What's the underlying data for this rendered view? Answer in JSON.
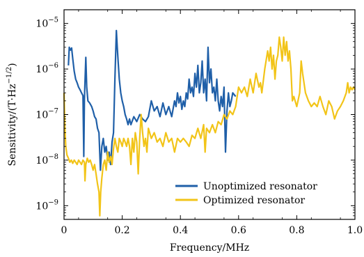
{
  "chart_data": {
    "type": "line",
    "xlabel": "Frequency/MHz",
    "ylabel": "Sensitivity/(T·Hz",
    "ylabel_exponent": "−1/2",
    "ylabel_suffix": ")",
    "xlim": [
      0,
      1.0
    ],
    "ylim": [
      5e-10,
      2e-05
    ],
    "yscale": "log",
    "grid": false,
    "legend_placement": "lower-right",
    "x_ticks": [
      0,
      0.2,
      0.4,
      0.6,
      0.8,
      1.0
    ],
    "x_tick_labels": [
      "0",
      "0.2",
      "0.4",
      "0.6",
      "0.8",
      "1.0"
    ],
    "y_ticks": [
      1e-09,
      1e-08,
      1e-07,
      1e-06,
      1e-05
    ],
    "y_tick_labels": [
      {
        "base": "10",
        "exp": "−9"
      },
      {
        "base": "10",
        "exp": "−8"
      },
      {
        "base": "10",
        "exp": "−7"
      },
      {
        "base": "10",
        "exp": "−6"
      },
      {
        "base": "10",
        "exp": "−5"
      }
    ],
    "series": [
      {
        "name": "Unoptimized resonator",
        "color": "#1f5fa8",
        "points": [
          [
            0.015,
            1.2e-06
          ],
          [
            0.018,
            3e-06
          ],
          [
            0.022,
            2.6e-06
          ],
          [
            0.026,
            2.9e-06
          ],
          [
            0.03,
            1.7e-06
          ],
          [
            0.035,
            9e-07
          ],
          [
            0.04,
            6e-07
          ],
          [
            0.045,
            5e-07
          ],
          [
            0.05,
            4e-07
          ],
          [
            0.055,
            3.5e-07
          ],
          [
            0.06,
            3e-07
          ],
          [
            0.065,
            2.6e-07
          ],
          [
            0.068,
            1.2e-08
          ],
          [
            0.07,
            2.2e-07
          ],
          [
            0.075,
            1.8e-06
          ],
          [
            0.078,
            4e-07
          ],
          [
            0.082,
            2e-07
          ],
          [
            0.088,
            1.8e-07
          ],
          [
            0.095,
            1.5e-07
          ],
          [
            0.1,
            1.2e-07
          ],
          [
            0.105,
            9e-08
          ],
          [
            0.11,
            8e-08
          ],
          [
            0.115,
            5e-08
          ],
          [
            0.12,
            4e-08
          ],
          [
            0.125,
            6e-09
          ],
          [
            0.13,
            2e-08
          ],
          [
            0.135,
            3e-08
          ],
          [
            0.14,
            1.5e-08
          ],
          [
            0.145,
            2e-08
          ],
          [
            0.15,
            1e-08
          ],
          [
            0.155,
            1.5e-08
          ],
          [
            0.16,
            8e-09
          ],
          [
            0.165,
            2.5e-08
          ],
          [
            0.17,
            4e-08
          ],
          [
            0.175,
            6e-07
          ],
          [
            0.18,
            7e-06
          ],
          [
            0.183,
            3e-06
          ],
          [
            0.186,
            1.5e-06
          ],
          [
            0.19,
            6e-07
          ],
          [
            0.195,
            3e-07
          ],
          [
            0.2,
            2e-07
          ],
          [
            0.205,
            1.5e-07
          ],
          [
            0.21,
            1e-07
          ],
          [
            0.215,
            8e-08
          ],
          [
            0.22,
            6e-08
          ],
          [
            0.225,
            8e-08
          ],
          [
            0.23,
            6e-08
          ],
          [
            0.24,
            9e-08
          ],
          [
            0.25,
            7e-08
          ],
          [
            0.26,
            1e-07
          ],
          [
            0.27,
            8e-08
          ],
          [
            0.28,
            7e-08
          ],
          [
            0.29,
            9e-08
          ],
          [
            0.3,
            2e-07
          ],
          [
            0.31,
            1.2e-07
          ],
          [
            0.32,
            1.5e-07
          ],
          [
            0.33,
            9e-08
          ],
          [
            0.34,
            1.8e-07
          ],
          [
            0.35,
            1e-07
          ],
          [
            0.36,
            1.5e-07
          ],
          [
            0.37,
            9e-08
          ],
          [
            0.38,
            2e-07
          ],
          [
            0.385,
            1.5e-07
          ],
          [
            0.39,
            3e-07
          ],
          [
            0.395,
            1.8e-07
          ],
          [
            0.4,
            2.5e-07
          ],
          [
            0.405,
            1.3e-07
          ],
          [
            0.41,
            2e-07
          ],
          [
            0.415,
            1.5e-07
          ],
          [
            0.42,
            3e-07
          ],
          [
            0.425,
            2.2e-07
          ],
          [
            0.43,
            6e-07
          ],
          [
            0.435,
            3e-07
          ],
          [
            0.44,
            4e-07
          ],
          [
            0.445,
            2.5e-07
          ],
          [
            0.45,
            8e-07
          ],
          [
            0.455,
            4e-07
          ],
          [
            0.46,
            1.2e-06
          ],
          [
            0.465,
            3e-07
          ],
          [
            0.47,
            5e-07
          ],
          [
            0.475,
            1.5e-06
          ],
          [
            0.48,
            3e-07
          ],
          [
            0.485,
            6e-07
          ],
          [
            0.49,
            2e-07
          ],
          [
            0.495,
            3e-06
          ],
          [
            0.5,
            5e-07
          ],
          [
            0.505,
            1e-06
          ],
          [
            0.51,
            3e-07
          ],
          [
            0.515,
            4e-07
          ],
          [
            0.52,
            2e-07
          ],
          [
            0.525,
            6e-07
          ],
          [
            0.53,
            2e-07
          ],
          [
            0.535,
            1.2e-07
          ],
          [
            0.54,
            2.5e-07
          ],
          [
            0.545,
            1.5e-07
          ],
          [
            0.55,
            4e-07
          ],
          [
            0.555,
            1.5e-08
          ],
          [
            0.56,
            1.2e-07
          ],
          [
            0.565,
            3e-07
          ],
          [
            0.57,
            1.5e-07
          ],
          [
            0.575,
            2e-07
          ],
          [
            0.58,
            3e-07
          ],
          [
            0.59,
            2.5e-07
          ]
        ]
      },
      {
        "name": "Optimized resonator",
        "color": "#f2c418",
        "points": [
          [
            0.0,
            3e-07
          ],
          [
            0.003,
            5e-08
          ],
          [
            0.006,
            2e-08
          ],
          [
            0.01,
            1.3e-08
          ],
          [
            0.015,
            1.1e-08
          ],
          [
            0.02,
            9e-09
          ],
          [
            0.025,
            1e-08
          ],
          [
            0.03,
            8.5e-09
          ],
          [
            0.035,
            1e-08
          ],
          [
            0.04,
            9e-09
          ],
          [
            0.045,
            8e-09
          ],
          [
            0.05,
            1e-08
          ],
          [
            0.055,
            9e-09
          ],
          [
            0.06,
            8e-09
          ],
          [
            0.065,
            1e-08
          ],
          [
            0.07,
            9e-09
          ],
          [
            0.072,
            3.5e-09
          ],
          [
            0.075,
            8e-09
          ],
          [
            0.08,
            1.1e-08
          ],
          [
            0.085,
            9e-09
          ],
          [
            0.09,
            1e-08
          ],
          [
            0.095,
            8e-09
          ],
          [
            0.1,
            6e-09
          ],
          [
            0.105,
            8e-09
          ],
          [
            0.11,
            5e-09
          ],
          [
            0.115,
            3e-09
          ],
          [
            0.12,
            2e-09
          ],
          [
            0.123,
            6e-10
          ],
          [
            0.126,
            2e-09
          ],
          [
            0.13,
            4e-09
          ],
          [
            0.135,
            8e-09
          ],
          [
            0.14,
            1e-08
          ],
          [
            0.145,
            6e-09
          ],
          [
            0.15,
            1.5e-08
          ],
          [
            0.155,
            9e-09
          ],
          [
            0.16,
            1.2e-08
          ],
          [
            0.165,
            8e-09
          ],
          [
            0.17,
            1.8e-08
          ],
          [
            0.175,
            3e-08
          ],
          [
            0.18,
            2e-08
          ],
          [
            0.185,
            1.5e-08
          ],
          [
            0.19,
            3e-08
          ],
          [
            0.195,
            2.5e-08
          ],
          [
            0.2,
            2e-08
          ],
          [
            0.205,
            3e-08
          ],
          [
            0.21,
            2.5e-08
          ],
          [
            0.215,
            2e-08
          ],
          [
            0.22,
            3e-08
          ],
          [
            0.225,
            2e-08
          ],
          [
            0.23,
            8e-09
          ],
          [
            0.235,
            3e-08
          ],
          [
            0.24,
            1.5e-08
          ],
          [
            0.245,
            4e-08
          ],
          [
            0.25,
            2.5e-08
          ],
          [
            0.255,
            5e-09
          ],
          [
            0.26,
            3e-08
          ],
          [
            0.265,
            1e-07
          ],
          [
            0.27,
            4e-08
          ],
          [
            0.275,
            2e-08
          ],
          [
            0.28,
            3e-08
          ],
          [
            0.285,
            1.5e-08
          ],
          [
            0.29,
            5e-08
          ],
          [
            0.3,
            3e-08
          ],
          [
            0.31,
            4e-08
          ],
          [
            0.32,
            2.5e-08
          ],
          [
            0.33,
            3e-08
          ],
          [
            0.34,
            2e-08
          ],
          [
            0.35,
            4e-08
          ],
          [
            0.36,
            2.5e-08
          ],
          [
            0.37,
            3e-08
          ],
          [
            0.38,
            1.5e-08
          ],
          [
            0.39,
            3e-08
          ],
          [
            0.4,
            2.5e-08
          ],
          [
            0.41,
            3e-08
          ],
          [
            0.42,
            2.5e-08
          ],
          [
            0.43,
            2e-08
          ],
          [
            0.44,
            3.5e-08
          ],
          [
            0.45,
            3e-08
          ],
          [
            0.46,
            5e-08
          ],
          [
            0.47,
            3e-08
          ],
          [
            0.48,
            6e-08
          ],
          [
            0.485,
            1.5e-08
          ],
          [
            0.49,
            5e-08
          ],
          [
            0.5,
            4e-08
          ],
          [
            0.51,
            6e-08
          ],
          [
            0.52,
            4e-08
          ],
          [
            0.53,
            7e-08
          ],
          [
            0.54,
            6e-08
          ],
          [
            0.55,
            1e-07
          ],
          [
            0.56,
            8e-08
          ],
          [
            0.57,
            1.2e-07
          ],
          [
            0.58,
            1e-07
          ],
          [
            0.59,
            1.5e-07
          ],
          [
            0.6,
            4e-07
          ],
          [
            0.61,
            3e-07
          ],
          [
            0.62,
            4e-07
          ],
          [
            0.63,
            2.5e-07
          ],
          [
            0.64,
            6e-07
          ],
          [
            0.65,
            3e-07
          ],
          [
            0.66,
            8e-07
          ],
          [
            0.67,
            4e-07
          ],
          [
            0.675,
            5e-07
          ],
          [
            0.68,
            3e-07
          ],
          [
            0.69,
            1e-06
          ],
          [
            0.7,
            2.5e-06
          ],
          [
            0.705,
            1.5e-06
          ],
          [
            0.71,
            3e-06
          ],
          [
            0.715,
            1e-06
          ],
          [
            0.72,
            2e-06
          ],
          [
            0.725,
            6e-07
          ],
          [
            0.73,
            1.5e-06
          ],
          [
            0.735,
            2e-06
          ],
          [
            0.74,
            5e-06
          ],
          [
            0.745,
            3e-06
          ],
          [
            0.75,
            1.5e-06
          ],
          [
            0.755,
            5e-06
          ],
          [
            0.76,
            2e-06
          ],
          [
            0.765,
            4e-06
          ],
          [
            0.77,
            1.5e-06
          ],
          [
            0.775,
            2.5e-06
          ],
          [
            0.78,
            1e-06
          ],
          [
            0.785,
            2e-07
          ],
          [
            0.79,
            2.5e-07
          ],
          [
            0.8,
            1.5e-07
          ],
          [
            0.81,
            3e-07
          ],
          [
            0.815,
            1.5e-06
          ],
          [
            0.82,
            8e-07
          ],
          [
            0.83,
            3e-07
          ],
          [
            0.84,
            2e-07
          ],
          [
            0.85,
            1.5e-07
          ],
          [
            0.86,
            1.8e-07
          ],
          [
            0.87,
            1.5e-07
          ],
          [
            0.88,
            2.5e-07
          ],
          [
            0.89,
            1.5e-07
          ],
          [
            0.9,
            1e-07
          ],
          [
            0.91,
            2e-07
          ],
          [
            0.92,
            1.5e-07
          ],
          [
            0.93,
            8e-08
          ],
          [
            0.94,
            1.2e-07
          ],
          [
            0.95,
            1.5e-07
          ],
          [
            0.96,
            2e-07
          ],
          [
            0.97,
            3e-07
          ],
          [
            0.975,
            5e-07
          ],
          [
            0.98,
            3e-07
          ],
          [
            0.985,
            4e-07
          ],
          [
            0.99,
            3.5e-07
          ],
          [
            0.995,
            4e-07
          ],
          [
            1.0,
            3.5e-07
          ]
        ]
      }
    ]
  }
}
